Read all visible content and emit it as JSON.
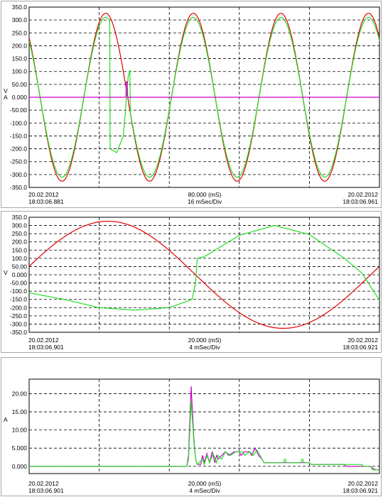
{
  "chart_data": [
    {
      "type": "line",
      "title": "",
      "ylabel_lines": [
        "V",
        "A"
      ],
      "ylim": [
        -350,
        350
      ],
      "yticks": [
        "350.0",
        "300.0",
        "250.0",
        "200.0",
        "150.0",
        "100.0",
        "50.00",
        "0.000",
        "-50.00",
        "-100.0",
        "-150.0",
        "-200.0",
        "-250.0",
        "-300.0",
        "-350.0"
      ],
      "x_range_ms": [
        0,
        80
      ],
      "x_divisions": 5,
      "footer": {
        "left_date": "20.02.2012",
        "left_time": "18:03:06.881",
        "center_value": "80.000 (mS)",
        "center_div": "16 mSec/Div",
        "right_date": "20.02.2012",
        "right_time": "18:03:06.961"
      },
      "series": [
        {
          "color": "#e00000",
          "kind": "sine",
          "amplitude": 326,
          "period_ms": 20,
          "zero_cross_ms": 2.5
        },
        {
          "color": "#22dd22",
          "kind": "sine",
          "amplitude": 310,
          "period_ms": 20,
          "zero_cross_ms": 2.5,
          "distortion_points": [
            [
              18.5,
              -200
            ],
            [
              20,
              -215
            ],
            [
              21.5,
              -150
            ],
            [
              22,
              -50
            ],
            [
              22.2,
              0
            ],
            [
              22.6,
              80
            ],
            [
              23,
              105
            ]
          ]
        },
        {
          "color": "#cc00cc",
          "kind": "flat",
          "value": 0,
          "spike_ms": 22.3,
          "spike_value": 60
        }
      ]
    },
    {
      "type": "line",
      "title": "",
      "ylabel_lines": [
        "V"
      ],
      "ylim": [
        -350,
        350
      ],
      "yticks": [
        "350.0",
        "300.0",
        "250.0",
        "200.0",
        "150.0",
        "100.0",
        "50.00",
        "0.000",
        "-50.00",
        "-100.0",
        "-150.0",
        "-200.0",
        "-250.0",
        "-300.0",
        "-350.0"
      ],
      "x_range_ms": [
        0,
        20
      ],
      "x_divisions": 5,
      "footer": {
        "left_date": "20.02.2012",
        "left_time": "18:03:06.901",
        "center_value": "20.000 (mS)",
        "center_div": "4 mSec/Div",
        "right_date": "20.02.2012",
        "right_time": "18:03:06.921"
      },
      "series": [
        {
          "color": "#e00000",
          "kind": "sine",
          "amplitude": 326,
          "period_ms": 20,
          "zero_cross_ms": 9.5
        },
        {
          "color": "#22dd22",
          "kind": "points",
          "points": [
            [
              0,
              -110
            ],
            [
              2,
              -150
            ],
            [
              4,
              -200
            ],
            [
              6,
              -215
            ],
            [
              8,
              -200
            ],
            [
              9.3,
              -150
            ],
            [
              9.5,
              -50
            ],
            [
              9.6,
              100
            ],
            [
              10,
              110
            ],
            [
              12,
              240
            ],
            [
              14,
              300
            ],
            [
              16,
              245
            ],
            [
              18,
              100
            ],
            [
              19,
              10
            ],
            [
              20,
              -155
            ]
          ]
        }
      ]
    },
    {
      "type": "line",
      "title": "",
      "ylabel_lines": [
        "A"
      ],
      "ylim": [
        -2,
        24
      ],
      "yticks": [
        "20.00",
        "15.00",
        "10.00",
        "5.000",
        "0.000"
      ],
      "ytick_values": [
        20,
        15,
        10,
        5,
        0
      ],
      "x_range_ms": [
        0,
        20
      ],
      "x_divisions": 5,
      "footer": {
        "left_date": "20.02.2012",
        "left_time": "18:03:06.901",
        "center_value": "20.000 (mS)",
        "center_div": "4 mSec/Div",
        "right_date": "20.02.2012",
        "right_time": "18:03:06.921"
      },
      "series": [
        {
          "color": "#cc00cc",
          "kind": "points",
          "points": [
            [
              0,
              0
            ],
            [
              9,
              0
            ],
            [
              9.1,
              3
            ],
            [
              9.25,
              22
            ],
            [
              9.4,
              8
            ],
            [
              9.5,
              2
            ],
            [
              9.6,
              0.5
            ],
            [
              9.8,
              0.5
            ],
            [
              9.9,
              3
            ],
            [
              10,
              1
            ],
            [
              10.15,
              3.5
            ],
            [
              10.3,
              1
            ],
            [
              10.45,
              4
            ],
            [
              10.6,
              1
            ],
            [
              10.7,
              3
            ],
            [
              10.8,
              2
            ],
            [
              11.2,
              4
            ],
            [
              11.4,
              3
            ],
            [
              11.7,
              4
            ],
            [
              12,
              4
            ],
            [
              12.1,
              3
            ],
            [
              12.3,
              4
            ],
            [
              12.6,
              4
            ],
            [
              12.7,
              3
            ],
            [
              12.9,
              5
            ],
            [
              13.1,
              3
            ],
            [
              13.3,
              2
            ],
            [
              13.4,
              1
            ],
            [
              14,
              1
            ],
            [
              15,
              1
            ],
            [
              16,
              1
            ],
            [
              16.1,
              0.5
            ],
            [
              18,
              0.5
            ],
            [
              18.1,
              0
            ],
            [
              19.5,
              0
            ],
            [
              19.6,
              -0.5
            ],
            [
              19.8,
              -1
            ],
            [
              20,
              -1
            ]
          ]
        },
        {
          "color": "#22dd22",
          "kind": "points",
          "points": [
            [
              0,
              0
            ],
            [
              9,
              0
            ],
            [
              9.1,
              2
            ],
            [
              9.25,
              18
            ],
            [
              9.4,
              7
            ],
            [
              9.5,
              2
            ],
            [
              9.6,
              0.5
            ],
            [
              9.9,
              2
            ],
            [
              10,
              0.5
            ],
            [
              10.15,
              3
            ],
            [
              10.3,
              1
            ],
            [
              10.5,
              3.5
            ],
            [
              10.7,
              1
            ],
            [
              10.8,
              3
            ],
            [
              11,
              2
            ],
            [
              11.2,
              4
            ],
            [
              11.5,
              3
            ],
            [
              11.8,
              4
            ],
            [
              12.2,
              4
            ],
            [
              12.3,
              3
            ],
            [
              12.6,
              4
            ],
            [
              12.8,
              3
            ],
            [
              13,
              4.5
            ],
            [
              13.3,
              2
            ],
            [
              13.4,
              1
            ],
            [
              14.5,
              1
            ],
            [
              14.6,
              2
            ],
            [
              14.7,
              1
            ],
            [
              15.5,
              1
            ],
            [
              15.6,
              2
            ],
            [
              15.7,
              1
            ],
            [
              16,
              1
            ],
            [
              16.1,
              0.5
            ],
            [
              19,
              0.5
            ],
            [
              19.1,
              0
            ],
            [
              19.5,
              0
            ],
            [
              19.6,
              -1
            ],
            [
              20,
              -1
            ]
          ]
        }
      ]
    }
  ]
}
